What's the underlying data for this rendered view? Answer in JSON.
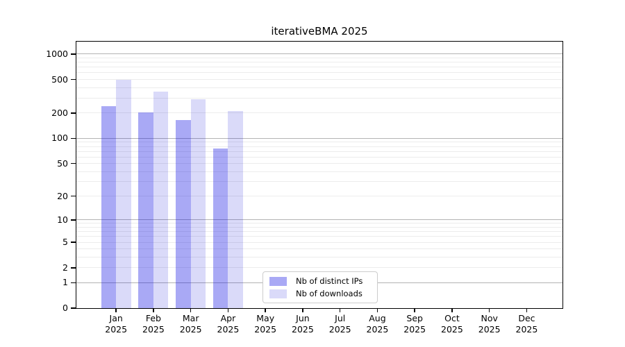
{
  "chart_data": {
    "type": "bar",
    "title": "iterativeBMA 2025",
    "categories": [
      "Jan 2025",
      "Feb 2025",
      "Mar 2025",
      "Apr 2025",
      "May 2025",
      "Jun 2025",
      "Jul 2025",
      "Aug 2025",
      "Sep 2025",
      "Oct 2025",
      "Nov 2025",
      "Dec 2025"
    ],
    "series": [
      {
        "name": "Nb of distinct IPs",
        "color": "rgba(10,10,225,0.35)",
        "values": [
          240,
          205,
          165,
          76,
          0,
          0,
          0,
          0,
          0,
          0,
          0,
          0
        ]
      },
      {
        "name": "Nb of downloads",
        "color": "rgba(8,8,215,0.15)",
        "values": [
          500,
          360,
          293,
          212,
          0,
          0,
          0,
          0,
          0,
          0,
          0,
          0
        ]
      }
    ],
    "xlabel": "",
    "ylabel": "",
    "y_ticks": [
      1000,
      500,
      200,
      100,
      50,
      20,
      10,
      5,
      2,
      1,
      0
    ],
    "y_scale": "log10(1+x)",
    "ylim": [
      0,
      1400
    ],
    "grid": "horizontal",
    "legend_position": "inside-bottom-center",
    "colors": {
      "major_grid": "#b3b3b3",
      "minor_grid": "#ececec",
      "axis": "#000000",
      "legend_border": "#cccccc",
      "bar_distinct_ips_on_white": "#aaaaf2",
      "bar_downloads_on_white": "#dadaf8"
    }
  }
}
